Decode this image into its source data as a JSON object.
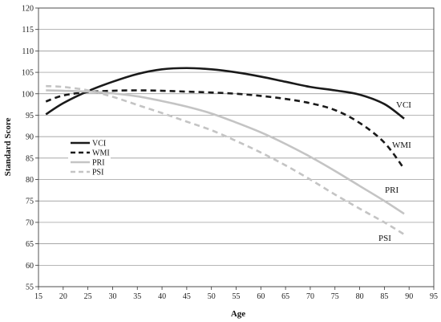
{
  "chart_data": {
    "type": "line",
    "title": "",
    "xlabel": "Age",
    "ylabel": "Standard Score",
    "xlim": [
      15,
      95
    ],
    "ylim": [
      55,
      120
    ],
    "xticks": [
      15,
      20,
      25,
      30,
      35,
      40,
      45,
      50,
      55,
      60,
      65,
      70,
      75,
      80,
      85,
      90,
      95
    ],
    "yticks": [
      55,
      60,
      65,
      70,
      75,
      80,
      85,
      90,
      95,
      100,
      105,
      110,
      115,
      120
    ],
    "grid": "horizontal",
    "legend": {
      "position": "left-middle",
      "entries": [
        "VCI",
        "WMI",
        "PRI",
        "PSI"
      ]
    },
    "series": [
      {
        "name": "VCI",
        "color": "#1a1a1a",
        "style": "solid",
        "end_label": "VCI",
        "x": [
          16.5,
          20,
          25,
          30,
          35,
          40,
          45,
          50,
          55,
          60,
          65,
          70,
          75,
          80,
          85,
          89
        ],
        "y": [
          95.2,
          97.8,
          100.6,
          102.8,
          104.6,
          105.7,
          106.0,
          105.7,
          105.0,
          104.0,
          102.8,
          101.6,
          100.8,
          99.8,
          97.6,
          94.2
        ]
      },
      {
        "name": "WMI",
        "color": "#1a1a1a",
        "style": "dashed",
        "end_label": "WMI",
        "x": [
          16.5,
          20,
          25,
          30,
          35,
          40,
          45,
          50,
          55,
          60,
          65,
          70,
          75,
          80,
          85,
          89
        ],
        "y": [
          98.2,
          99.6,
          100.4,
          100.7,
          100.8,
          100.7,
          100.5,
          100.3,
          100.0,
          99.5,
          98.8,
          97.8,
          96.2,
          93.2,
          88.6,
          82.5
        ]
      },
      {
        "name": "PRI",
        "color": "#c4c4c4",
        "style": "solid",
        "end_label": "PRI",
        "x": [
          16.5,
          20,
          25,
          30,
          35,
          40,
          45,
          50,
          55,
          60,
          65,
          70,
          75,
          80,
          85,
          89
        ],
        "y": [
          100.8,
          100.7,
          100.5,
          100.1,
          99.4,
          98.3,
          97.0,
          95.4,
          93.3,
          91.0,
          88.3,
          85.3,
          82.0,
          78.5,
          75.0,
          72.0
        ]
      },
      {
        "name": "PSI",
        "color": "#c4c4c4",
        "style": "dashed",
        "end_label": "PSI",
        "x": [
          16.5,
          20,
          25,
          30,
          35,
          40,
          45,
          50,
          55,
          60,
          65,
          70,
          75,
          80,
          85,
          89
        ],
        "y": [
          101.8,
          101.6,
          100.8,
          99.3,
          97.4,
          95.5,
          93.5,
          91.5,
          89.0,
          86.3,
          83.3,
          80.0,
          76.5,
          73.2,
          70.0,
          67.2
        ]
      }
    ]
  }
}
